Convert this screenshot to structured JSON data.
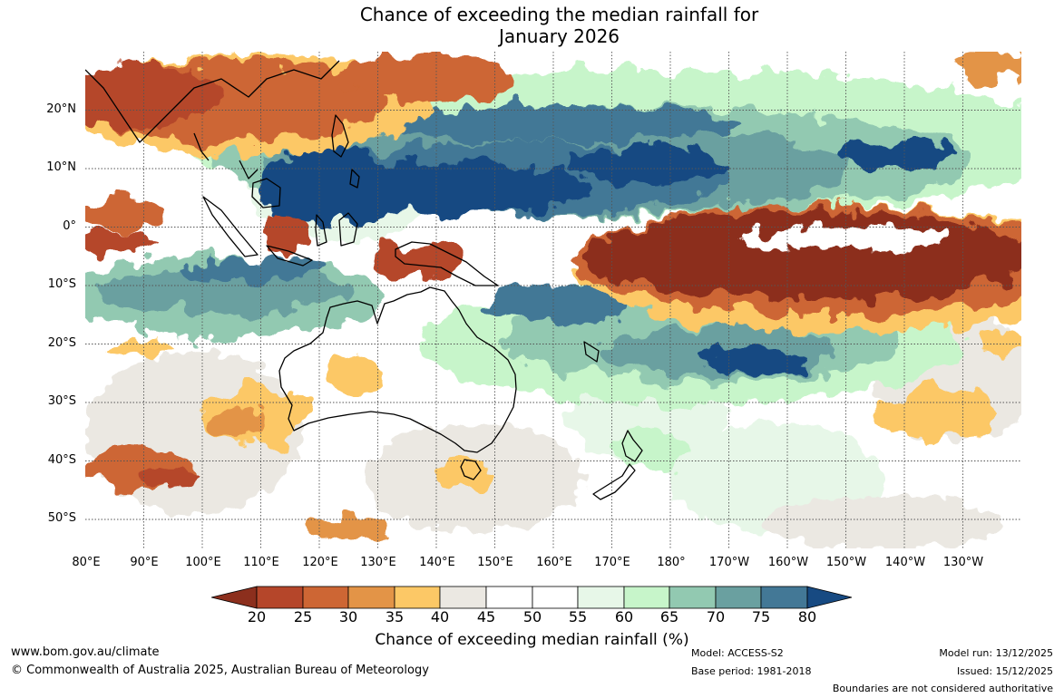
{
  "title": {
    "line1": "Chance of exceeding the median rainfall for",
    "line2": "January 2026"
  },
  "map": {
    "lat_labels": [
      "20°N",
      "10°N",
      "0°",
      "10°S",
      "20°S",
      "30°S",
      "40°S",
      "50°S"
    ],
    "lon_labels": [
      "80°E",
      "90°E",
      "100°E",
      "110°E",
      "120°E",
      "130°E",
      "140°E",
      "150°E",
      "160°E",
      "170°E",
      "180°",
      "170°W",
      "160°W",
      "150°W",
      "140°W",
      "130°W"
    ],
    "lat_range": [
      -55,
      30
    ],
    "lon_range": [
      80,
      240
    ]
  },
  "legend": {
    "ticks": [
      "20",
      "25",
      "30",
      "35",
      "40",
      "45",
      "50",
      "55",
      "60",
      "65",
      "70",
      "75",
      "80"
    ],
    "colors": [
      "#8c2f1d",
      "#b5462a",
      "#cd6634",
      "#e39447",
      "#fcc866",
      "#ebe8e2",
      "#ffffff",
      "#ffffff",
      "#e7f7e8",
      "#c7f5ca",
      "#92c9b1",
      "#6aa0a0",
      "#437896",
      "#174a82"
    ],
    "label": "Chance of exceeding median rainfall (%)"
  },
  "footer": {
    "website": "www.bom.gov.au/climate",
    "copyright": "© Commonwealth of Australia 2025, Australian Bureau of Meteorology",
    "model": "Model: ACCESS-S2",
    "base_period": "Base period: 1981-2018",
    "model_run": "Model run: 13/12/2025",
    "issued": "Issued: 15/12/2025",
    "disclaimer": "Boundaries are not considered authoritative"
  }
}
